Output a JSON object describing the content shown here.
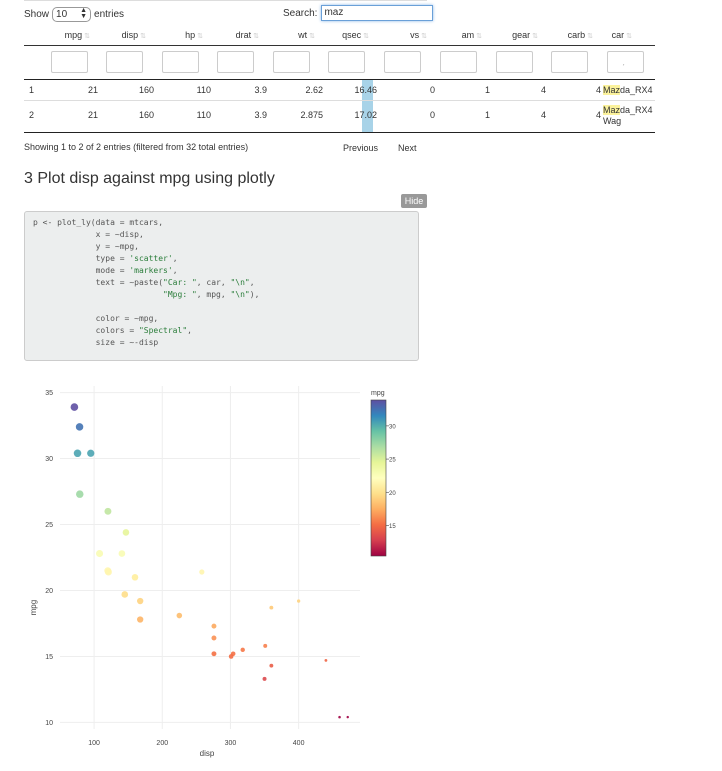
{
  "controls": {
    "show_label": "Show",
    "show_value": "10",
    "entries_label": "entries",
    "search_label": "Search:",
    "search_value": "maz"
  },
  "table": {
    "columns": [
      "",
      "mpg",
      "disp",
      "hp",
      "drat",
      "wt",
      "qsec",
      "vs",
      "am",
      "gear",
      "carb",
      "car"
    ],
    "filter_placeholder_car": "ˏ",
    "rows": [
      {
        "idx": "1",
        "mpg": "21",
        "disp": "160",
        "hp": "110",
        "drat": "3.9",
        "wt": "2.62",
        "qsec": "16.46",
        "vs": "0",
        "am": "1",
        "gear": "4",
        "carb": "4",
        "car_hl": "Maz",
        "car_rest": "da_RX4",
        "car_line2": "",
        "qsec_fraction": 0.6
      },
      {
        "idx": "2",
        "mpg": "21",
        "disp": "160",
        "hp": "110",
        "drat": "3.9",
        "wt": "2.875",
        "qsec": "17.02",
        "vs": "0",
        "am": "1",
        "gear": "4",
        "carb": "4",
        "car_hl": "Maz",
        "car_rest": "da_RX4",
        "car_line2": "Wag",
        "qsec_fraction": 0.6
      }
    ],
    "info": "Showing 1 to 2 of 2 entries (filtered from 32 total entries)",
    "previous": "Previous",
    "next": "Next"
  },
  "section": {
    "title": "3 Plot disp against mpg using plotly",
    "hide_label": "Hide"
  },
  "code_lines": [
    [
      {
        "t": "p <- plot_ly(data = mtcars,"
      }
    ],
    [
      {
        "t": "             x = ~disp,"
      }
    ],
    [
      {
        "t": "             y = ~mpg,"
      }
    ],
    [
      {
        "t": "             type = "
      },
      {
        "t": "'scatter'",
        "s": true
      },
      {
        "t": ","
      }
    ],
    [
      {
        "t": "             mode = "
      },
      {
        "t": "'markers'",
        "s": true
      },
      {
        "t": ","
      }
    ],
    [
      {
        "t": "             text = ~paste("
      },
      {
        "t": "\"Car: \"",
        "s": true
      },
      {
        "t": ", car, "
      },
      {
        "t": "\"\\n\"",
        "s": true
      },
      {
        "t": ","
      }
    ],
    [
      {
        "t": "                           "
      },
      {
        "t": "\"Mpg: \"",
        "s": true
      },
      {
        "t": ", mpg, "
      },
      {
        "t": "\"\\n\"",
        "s": true
      },
      {
        "t": "),"
      }
    ],
    [
      {
        "t": ""
      }
    ],
    [
      {
        "t": "             color = ~mpg,"
      }
    ],
    [
      {
        "t": "             colors = "
      },
      {
        "t": "\"Spectral\"",
        "s": true
      },
      {
        "t": ","
      }
    ],
    [
      {
        "t": "             size = ~-disp"
      }
    ],
    [
      {
        "t": ""
      }
    ],
    [
      {
        "t": ")"
      }
    ],
    [
      {
        "t": "p"
      }
    ]
  ],
  "chart_data": {
    "type": "scatter",
    "xlabel": "disp",
    "ylabel": "mpg",
    "xlim": [
      50,
      490
    ],
    "ylim": [
      9.5,
      35.5
    ],
    "x_ticks": [
      100,
      200,
      300,
      400
    ],
    "y_ticks": [
      10,
      15,
      20,
      25,
      30,
      35
    ],
    "grid": true,
    "colorbar": {
      "title": "mpg",
      "ticks": [
        15,
        20,
        25,
        30
      ],
      "min": 10.4,
      "max": 33.9,
      "colorscale": "Spectral",
      "placement": "right"
    },
    "points": [
      {
        "x": 160,
        "y": 21.0
      },
      {
        "x": 160,
        "y": 21.0
      },
      {
        "x": 108,
        "y": 22.8
      },
      {
        "x": 258,
        "y": 21.4
      },
      {
        "x": 360,
        "y": 18.7
      },
      {
        "x": 225,
        "y": 18.1
      },
      {
        "x": 360,
        "y": 14.3
      },
      {
        "x": 146.7,
        "y": 24.4
      },
      {
        "x": 140.8,
        "y": 22.8
      },
      {
        "x": 167.6,
        "y": 19.2
      },
      {
        "x": 167.6,
        "y": 17.8
      },
      {
        "x": 275.8,
        "y": 16.4
      },
      {
        "x": 275.8,
        "y": 17.3
      },
      {
        "x": 275.8,
        "y": 15.2
      },
      {
        "x": 472,
        "y": 10.4
      },
      {
        "x": 460,
        "y": 10.4
      },
      {
        "x": 440,
        "y": 14.7
      },
      {
        "x": 78.7,
        "y": 32.4
      },
      {
        "x": 75.7,
        "y": 30.4
      },
      {
        "x": 71.1,
        "y": 33.9
      },
      {
        "x": 120.1,
        "y": 21.5
      },
      {
        "x": 318,
        "y": 15.5
      },
      {
        "x": 304,
        "y": 15.2
      },
      {
        "x": 350,
        "y": 13.3
      },
      {
        "x": 400,
        "y": 19.2
      },
      {
        "x": 79,
        "y": 27.3
      },
      {
        "x": 120.3,
        "y": 26.0
      },
      {
        "x": 95.1,
        "y": 30.4
      },
      {
        "x": 351,
        "y": 15.8
      },
      {
        "x": 145,
        "y": 19.7
      },
      {
        "x": 301,
        "y": 15.0
      },
      {
        "x": 121,
        "y": 21.4
      }
    ]
  }
}
